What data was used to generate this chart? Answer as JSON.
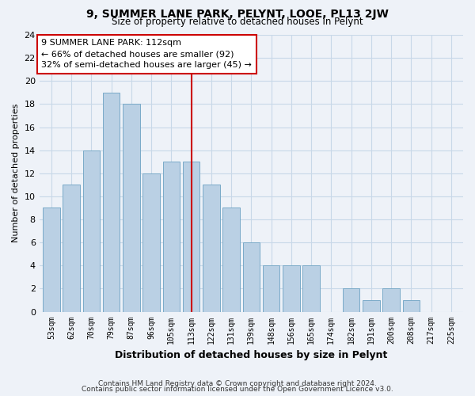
{
  "title": "9, SUMMER LANE PARK, PELYNT, LOOE, PL13 2JW",
  "subtitle": "Size of property relative to detached houses in Pelynt",
  "xlabel": "Distribution of detached houses by size in Pelynt",
  "ylabel": "Number of detached properties",
  "bar_labels": [
    "53sqm",
    "62sqm",
    "70sqm",
    "79sqm",
    "87sqm",
    "96sqm",
    "105sqm",
    "113sqm",
    "122sqm",
    "131sqm",
    "139sqm",
    "148sqm",
    "156sqm",
    "165sqm",
    "174sqm",
    "182sqm",
    "191sqm",
    "200sqm",
    "208sqm",
    "217sqm",
    "225sqm"
  ],
  "bar_values": [
    9,
    11,
    14,
    19,
    18,
    12,
    13,
    13,
    11,
    9,
    6,
    4,
    4,
    4,
    0,
    2,
    1,
    2,
    1,
    0,
    0
  ],
  "bar_color": "#bad0e4",
  "bar_edge_color": "#7aaac8",
  "vline_index": 7,
  "vline_color": "#cc0000",
  "annotation_line1": "9 SUMMER LANE PARK: 112sqm",
  "annotation_line2": "← 66% of detached houses are smaller (92)",
  "annotation_line3": "32% of semi-detached houses are larger (45) →",
  "annotation_box_facecolor": "#ffffff",
  "annotation_box_edgecolor": "#cc0000",
  "ylim": [
    0,
    24
  ],
  "yticks": [
    0,
    2,
    4,
    6,
    8,
    10,
    12,
    14,
    16,
    18,
    20,
    22,
    24
  ],
  "footer_line1": "Contains HM Land Registry data © Crown copyright and database right 2024.",
  "footer_line2": "Contains public sector information licensed under the Open Government Licence v3.0.",
  "grid_color": "#c8d8e8",
  "background_color": "#eef2f8",
  "plot_bg_color": "#eef2f8"
}
